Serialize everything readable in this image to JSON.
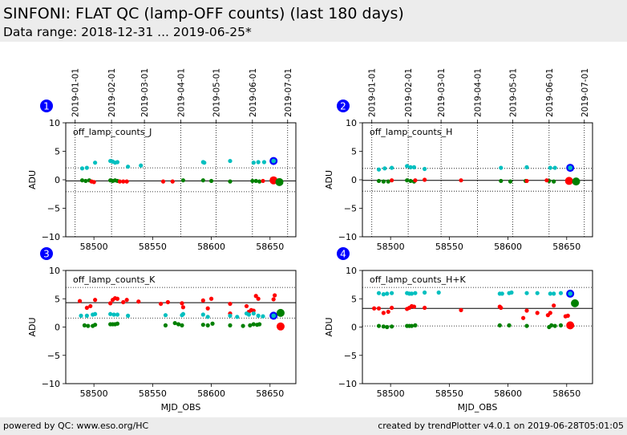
{
  "header": {
    "title": "SINFONI: FLAT QC (lamp-OFF counts) (last 180 days)",
    "subtitle": "Data range: 2018-12-31 ... 2019-06-25*"
  },
  "footer": {
    "left": "powered by QC: www.eso.org/HC",
    "right": "created by trendPlotter v4.0.1 on 2019-06-28T05:01:05"
  },
  "colors": {
    "primary": "#008000",
    "secondary_jhk": "#00bfbf",
    "secondary_k": "#ff0000",
    "latest": "#0000ff",
    "limit_line": "#000000"
  },
  "chart_data": [
    {
      "type": "scatter",
      "badge": "1",
      "label": "off_lamp_counts_J",
      "xlabel": "",
      "ylabel": "ADU",
      "xlim": [
        58476,
        58672
      ],
      "ylim": [
        -10,
        10
      ],
      "xticks": [
        58500,
        58550,
        58600,
        58650
      ],
      "yticks": [
        -10,
        -5,
        0,
        5,
        10
      ],
      "date_ticks": [
        [
          "2019-01-01",
          58484
        ],
        [
          "2019-02-01",
          58515
        ],
        [
          "2019-03-01",
          58543
        ],
        [
          "2019-04-01",
          58574
        ],
        [
          "2019-05-01",
          58604
        ],
        [
          "2019-06-01",
          58635
        ],
        [
          "2019-07-01",
          58665
        ]
      ],
      "hlines": {
        "solid": -0.2,
        "dotted": [
          2.1,
          -2.1
        ]
      },
      "series": [
        {
          "color": "#00bfbf",
          "x": [
            58490,
            58494,
            58501,
            58514,
            58516,
            58518,
            58520,
            58529,
            58540,
            58593,
            58594,
            58616,
            58636,
            58640,
            58645
          ],
          "y": [
            2.0,
            2.1,
            3.0,
            3.3,
            3.2,
            3.0,
            3.1,
            2.3,
            2.5,
            3.1,
            3.0,
            3.3,
            3.0,
            3.1,
            3.1
          ]
        },
        {
          "color": "#008000",
          "x": [
            58490,
            58493,
            58496,
            58514,
            58516,
            58518,
            58520,
            58576,
            58593,
            58600,
            58616,
            58635,
            58638,
            58641
          ],
          "y": [
            -0.1,
            -0.2,
            -0.1,
            -0.1,
            -0.2,
            -0.1,
            -0.2,
            -0.1,
            -0.1,
            -0.2,
            -0.3,
            -0.2,
            -0.2,
            -0.3
          ]
        },
        {
          "color": "#ff0000",
          "x": [
            58498,
            58500,
            58522,
            58525,
            58528,
            58559,
            58567,
            58644
          ],
          "y": [
            -0.3,
            -0.4,
            -0.3,
            -0.3,
            -0.3,
            -0.3,
            -0.3,
            -0.2
          ]
        }
      ],
      "latest": [
        {
          "color": "#0000ff",
          "x": 58653,
          "y": 3.3
        },
        {
          "color": "#ff0000",
          "x": 58653,
          "y": -0.1
        },
        {
          "color": "#008000",
          "x": 58658,
          "y": -0.4
        }
      ]
    },
    {
      "type": "scatter",
      "badge": "2",
      "label": "off_lamp_counts_H",
      "xlabel": "",
      "ylabel": "ADU",
      "xlim": [
        58476,
        58672
      ],
      "ylim": [
        -10,
        10
      ],
      "xticks": [
        58500,
        58550,
        58600,
        58650
      ],
      "yticks": [
        -10,
        -5,
        0,
        5,
        10
      ],
      "date_ticks": [
        [
          "2019-01-01",
          58484
        ],
        [
          "2019-02-01",
          58515
        ],
        [
          "2019-03-01",
          58543
        ],
        [
          "2019-04-01",
          58574
        ],
        [
          "2019-05-01",
          58604
        ],
        [
          "2019-06-01",
          58635
        ],
        [
          "2019-07-01",
          58665
        ]
      ],
      "hlines": {
        "solid": -0.1,
        "dotted": [
          2.0,
          -2.0
        ]
      },
      "series": [
        {
          "color": "#00bfbf",
          "x": [
            58490,
            58495,
            58501,
            58514,
            58517,
            58520,
            58529,
            58594,
            58616,
            58636,
            58640
          ],
          "y": [
            1.8,
            2.0,
            2.1,
            2.4,
            2.2,
            2.2,
            1.9,
            2.1,
            2.2,
            2.1,
            2.1
          ]
        },
        {
          "color": "#008000",
          "x": [
            58490,
            58494,
            58498,
            58514,
            58517,
            58520,
            58594,
            58602,
            58615,
            58635,
            58639
          ],
          "y": [
            -0.2,
            -0.3,
            -0.3,
            -0.1,
            -0.2,
            -0.3,
            -0.2,
            -0.3,
            -0.2,
            -0.2,
            -0.3
          ]
        },
        {
          "color": "#ff0000",
          "x": [
            58501,
            58521,
            58529,
            58560,
            58616,
            58633
          ],
          "y": [
            -0.1,
            -0.1,
            0.0,
            -0.1,
            -0.2,
            -0.1
          ]
        }
      ],
      "latest": [
        {
          "color": "#0000ff",
          "x": 58653,
          "y": 2.1
        },
        {
          "color": "#ff0000",
          "x": 58652,
          "y": -0.2
        },
        {
          "color": "#008000",
          "x": 58658,
          "y": -0.3
        }
      ]
    },
    {
      "type": "scatter",
      "badge": "3",
      "label": "off_lamp_counts_K",
      "xlabel": "MJD_OBS",
      "ylabel": "ADU",
      "xlim": [
        58476,
        58672
      ],
      "ylim": [
        -10,
        10
      ],
      "xticks": [
        58500,
        58550,
        58600,
        58650
      ],
      "yticks": [
        -10,
        -5,
        0,
        5,
        10
      ],
      "hlines": {
        "solid": 4.3,
        "dotted": [
          7.0,
          1.6
        ]
      },
      "series": [
        {
          "color": "#ff0000",
          "x": [
            58488,
            58494,
            58497,
            58501,
            58514,
            58516,
            58518,
            58520,
            58525,
            58528,
            58538,
            58557,
            58563,
            58575,
            58576,
            58593,
            58597,
            58600,
            58616,
            58616,
            58630,
            58632,
            58634,
            58636,
            58638,
            58640,
            58653,
            58654
          ],
          "y": [
            4.6,
            3.4,
            3.7,
            4.8,
            4.2,
            4.8,
            5.1,
            5.0,
            4.4,
            4.8,
            4.5,
            4.1,
            4.4,
            4.2,
            3.5,
            4.7,
            3.3,
            5.0,
            2.4,
            4.1,
            3.7,
            2.7,
            3.0,
            2.9,
            5.5,
            5.0,
            4.9,
            5.6
          ]
        },
        {
          "color": "#00bfbf",
          "x": [
            58489,
            58494,
            58499,
            58501,
            58514,
            58517,
            58520,
            58529,
            58561,
            58575,
            58576,
            58593,
            58597,
            58616,
            58622,
            58630,
            58632,
            58636,
            58640,
            58644
          ],
          "y": [
            2.0,
            2.0,
            2.2,
            2.3,
            2.3,
            2.2,
            2.2,
            2.0,
            2.1,
            2.1,
            2.3,
            2.2,
            1.8,
            2.0,
            1.8,
            2.4,
            2.2,
            2.4,
            2.0,
            1.9
          ]
        },
        {
          "color": "#008000",
          "x": [
            58492,
            58495,
            58499,
            58501,
            58514,
            58516,
            58518,
            58520,
            58561,
            58569,
            58572,
            58575,
            58593,
            58597,
            58601,
            58616,
            58627,
            58633,
            58636,
            58639,
            58641
          ],
          "y": [
            0.3,
            0.2,
            0.2,
            0.4,
            0.5,
            0.5,
            0.5,
            0.6,
            0.3,
            0.7,
            0.5,
            0.3,
            0.4,
            0.3,
            0.6,
            0.3,
            0.2,
            0.3,
            0.5,
            0.4,
            0.5
          ]
        }
      ],
      "latest": [
        {
          "color": "#0000ff",
          "x": 58653,
          "y": 2.0
        },
        {
          "color": "#008000",
          "x": 58659,
          "y": 2.5
        },
        {
          "color": "#ff0000",
          "x": 58659,
          "y": 0.1
        }
      ]
    },
    {
      "type": "scatter",
      "badge": "4",
      "label": "off_lamp_counts_H+K",
      "xlabel": "MJD_OBS",
      "ylabel": "ADU",
      "xlim": [
        58476,
        58672
      ],
      "ylim": [
        -10,
        10
      ],
      "xticks": [
        58500,
        58550,
        58600,
        58650
      ],
      "yticks": [
        -10,
        -5,
        0,
        5,
        10
      ],
      "hlines": {
        "solid": 3.3,
        "dotted": [
          7.0,
          0.2
        ]
      },
      "series": [
        {
          "color": "#00bfbf",
          "x": [
            58490,
            58494,
            58497,
            58501,
            58514,
            58516,
            58518,
            58521,
            58529,
            58541,
            58593,
            58595,
            58601,
            58603,
            58616,
            58625,
            58636,
            58639,
            58645
          ],
          "y": [
            6.0,
            5.8,
            5.9,
            6.0,
            6.0,
            5.9,
            5.9,
            6.0,
            6.1,
            6.1,
            5.9,
            5.9,
            6.0,
            6.1,
            6.0,
            6.0,
            5.9,
            5.9,
            6.0
          ]
        },
        {
          "color": "#ff0000",
          "x": [
            58486,
            58490,
            58494,
            58498,
            58501,
            58514,
            58516,
            58518,
            58520,
            58529,
            58560,
            58593,
            58594,
            58613,
            58616,
            58625,
            58634,
            58636,
            58639,
            58649,
            58651
          ],
          "y": [
            3.3,
            3.3,
            2.5,
            2.7,
            3.4,
            3.2,
            3.4,
            3.7,
            3.6,
            3.4,
            3.0,
            3.6,
            3.4,
            1.6,
            2.9,
            2.5,
            2.1,
            2.5,
            3.8,
            1.9,
            2.0
          ]
        },
        {
          "color": "#008000",
          "x": [
            58490,
            58494,
            58497,
            58501,
            58514,
            58516,
            58518,
            58521,
            58593,
            58601,
            58616,
            58635,
            58637,
            58640,
            58645
          ],
          "y": [
            0.2,
            0.1,
            0.0,
            0.1,
            0.2,
            0.2,
            0.2,
            0.3,
            0.3,
            0.3,
            0.2,
            0.0,
            0.3,
            0.2,
            0.3
          ]
        }
      ],
      "latest": [
        {
          "color": "#0000ff",
          "x": 58653,
          "y": 5.9
        },
        {
          "color": "#008000",
          "x": 58657,
          "y": 4.2
        },
        {
          "color": "#ff0000",
          "x": 58653,
          "y": 0.3
        }
      ]
    }
  ]
}
